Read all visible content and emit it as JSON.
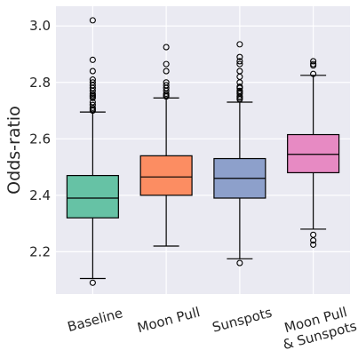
{
  "chart_data": {
    "type": "box",
    "title": "",
    "xlabel": "",
    "ylabel": "Odds-ratio",
    "ylim": [
      2.05,
      3.07
    ],
    "yticks": [
      "2.2",
      "2.4",
      "2.6",
      "2.8",
      "3.0"
    ],
    "ytick_values": [
      2.2,
      2.4,
      2.6,
      2.8,
      3.0
    ],
    "grid": true,
    "categories": [
      {
        "label": "Baseline",
        "label_lines": [
          "Baseline"
        ]
      },
      {
        "label": "Moon Pull",
        "label_lines": [
          "Moon Pull"
        ]
      },
      {
        "label": "Sunspots",
        "label_lines": [
          "Sunspots"
        ]
      },
      {
        "label": "Moon Pull & Sunspots",
        "label_lines": [
          "Moon Pull",
          "& Sunspots"
        ]
      }
    ],
    "boxes": [
      {
        "color": "#66c2a5",
        "whisker_low": 2.105,
        "q1": 2.32,
        "median": 2.39,
        "q3": 2.47,
        "whisker_high": 2.695,
        "outliers": [
          2.09,
          2.7,
          2.705,
          2.71,
          2.72,
          2.73,
          2.745,
          2.75,
          2.755,
          2.76,
          2.77,
          2.78,
          2.79,
          2.8,
          2.81,
          2.84,
          2.88,
          3.02
        ]
      },
      {
        "color": "#fc8d62",
        "whisker_low": 2.22,
        "q1": 2.4,
        "median": 2.465,
        "q3": 2.54,
        "whisker_high": 2.745,
        "outliers": [
          2.75,
          2.755,
          2.76,
          2.77,
          2.78,
          2.79,
          2.8,
          2.84,
          2.865,
          2.925
        ]
      },
      {
        "color": "#8da0cb",
        "whisker_low": 2.175,
        "q1": 2.39,
        "median": 2.46,
        "q3": 2.53,
        "whisker_high": 2.73,
        "outliers": [
          2.16,
          2.74,
          2.745,
          2.75,
          2.76,
          2.765,
          2.77,
          2.78,
          2.785,
          2.8,
          2.82,
          2.84,
          2.865,
          2.875,
          2.89,
          2.935
        ]
      },
      {
        "color": "#e78ac3",
        "whisker_low": 2.28,
        "q1": 2.48,
        "median": 2.545,
        "q3": 2.615,
        "whisker_high": 2.825,
        "outliers": [
          2.225,
          2.24,
          2.26,
          2.83,
          2.86,
          2.865,
          2.875
        ]
      }
    ]
  }
}
